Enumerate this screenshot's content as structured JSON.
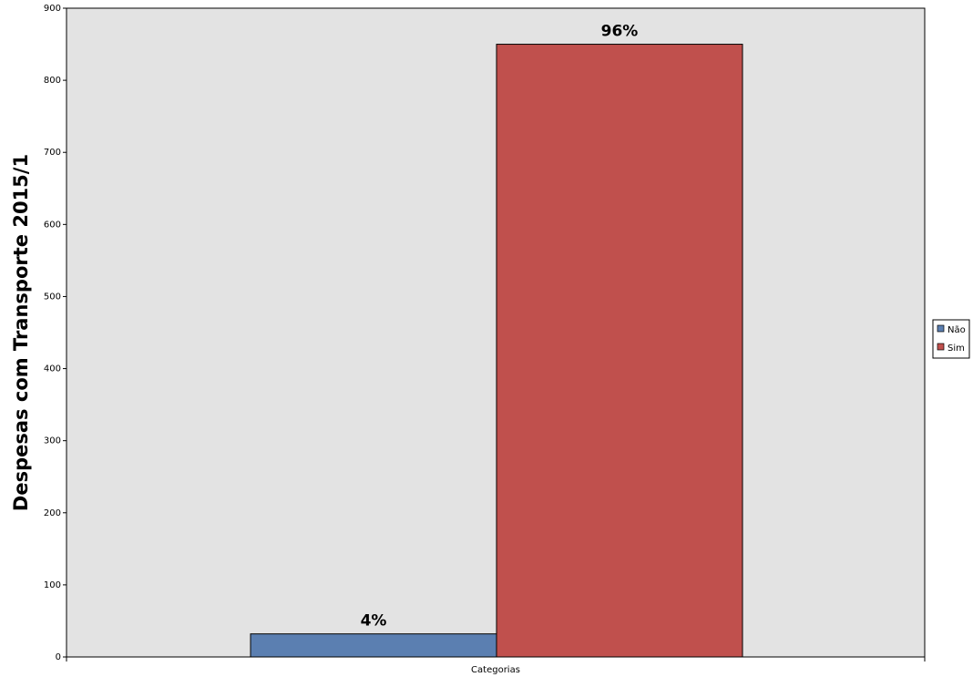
{
  "chart_data": {
    "type": "bar",
    "categories": [
      "Categorias"
    ],
    "series": [
      {
        "name": "Não",
        "values": [
          32
        ],
        "label": "4%",
        "color": "#5b7fb1"
      },
      {
        "name": "Sim",
        "values": [
          850
        ],
        "label": "96%",
        "color": "#c0504d"
      }
    ],
    "xlabel": "Categorias",
    "ylabel": "Despesas com Transporte 2015/1",
    "ylim": [
      0,
      900
    ],
    "yticks": [
      0,
      100,
      200,
      300,
      400,
      500,
      600,
      700,
      800,
      900
    ],
    "grid": false,
    "legend": "right",
    "plot_background": "#e3e3e3"
  }
}
